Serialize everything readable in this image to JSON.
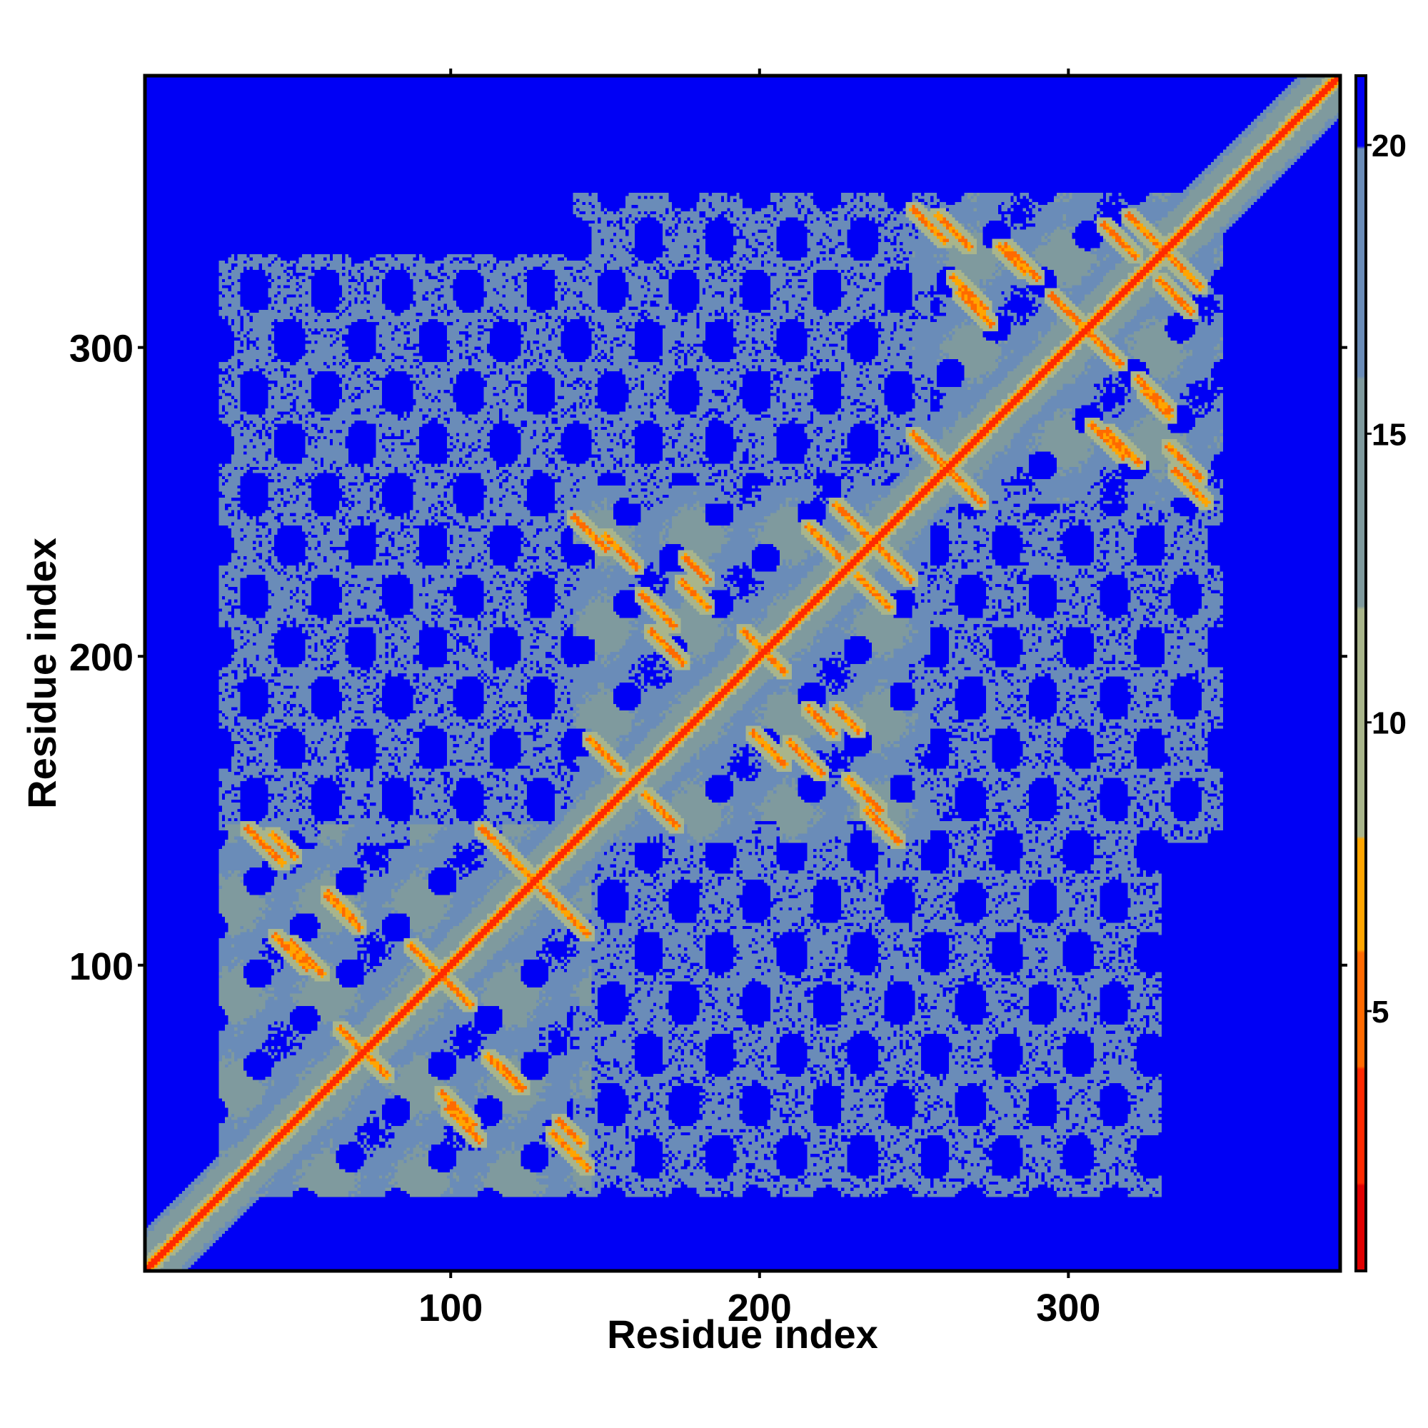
{
  "chart_data": {
    "type": "heatmap",
    "xlabel": "Residue index",
    "ylabel": "Residue index",
    "xlim": [
      1,
      388
    ],
    "ylim": [
      1,
      388
    ],
    "x_ticks": [
      100,
      200,
      300
    ],
    "y_ticks": [
      100,
      200,
      300
    ],
    "x_tick_labels": [
      "100",
      "200",
      "300"
    ],
    "y_tick_labels": [
      "100",
      "200",
      "300"
    ],
    "colorbar": {
      "range": [
        0.5,
        21.2
      ],
      "ticks": [
        5,
        10,
        15,
        20
      ],
      "tick_labels": [
        "5",
        "10",
        "15",
        "20"
      ],
      "bands": [
        {
          "from": 0.5,
          "to": 2,
          "color": "#e00000"
        },
        {
          "from": 2,
          "to": 4,
          "color": "#ff2a00"
        },
        {
          "from": 4,
          "to": 6,
          "color": "#ff6a00"
        },
        {
          "from": 6,
          "to": 8,
          "color": "#ffa500"
        },
        {
          "from": 8,
          "to": 12,
          "color": "#a9b58b"
        },
        {
          "from": 12,
          "to": 16,
          "color": "#7f9a9e"
        },
        {
          "from": 16,
          "to": 20,
          "color": "#6a8cb8"
        },
        {
          "from": 20,
          "to": 21.2,
          "color": "#0000f5"
        }
      ]
    },
    "value_cap": 21,
    "diagonal_value": 2,
    "grid": false,
    "domains": [
      {
        "range": [
          25,
          145
        ],
        "base": 16
      },
      {
        "range": [
          140,
          255
        ],
        "base": 16
      },
      {
        "range": [
          250,
          350
        ],
        "base": 16
      }
    ],
    "inter_domain_blocks": [
      {
        "rows": [
          25,
          145
        ],
        "cols": [
          140,
          255
        ],
        "base": 18.5
      },
      {
        "rows": [
          140,
          255
        ],
        "cols": [
          250,
          350
        ],
        "base": 18.5
      },
      {
        "rows": [
          25,
          145
        ],
        "cols": [
          250,
          330
        ],
        "base": 20.5
      }
    ],
    "contact_lines": [
      {
        "x1": 34,
        "y1": 144,
        "x2": 45,
        "y2": 133
      },
      {
        "x1": 60,
        "y1": 122,
        "x2": 70,
        "y2": 112
      },
      {
        "x1": 43,
        "y1": 109,
        "x2": 53,
        "y2": 99
      },
      {
        "x1": 87,
        "y1": 106,
        "x2": 97,
        "y2": 96
      },
      {
        "x1": 110,
        "y1": 144,
        "x2": 140,
        "y2": 114
      },
      {
        "x1": 64,
        "y1": 79,
        "x2": 72,
        "y2": 71
      },
      {
        "x1": 97,
        "y1": 58,
        "x2": 107,
        "y2": 48
      },
      {
        "x1": 115,
        "y1": 68,
        "x2": 123,
        "y2": 60
      },
      {
        "x1": 135,
        "y1": 49,
        "x2": 142,
        "y2": 42
      },
      {
        "x1": 150,
        "y1": 239,
        "x2": 160,
        "y2": 229
      },
      {
        "x1": 175,
        "y1": 224,
        "x2": 183,
        "y2": 216
      },
      {
        "x1": 165,
        "y1": 208,
        "x2": 175,
        "y2": 198
      },
      {
        "x1": 195,
        "y1": 208,
        "x2": 205,
        "y2": 198
      },
      {
        "x1": 225,
        "y1": 249,
        "x2": 235,
        "y2": 239
      },
      {
        "x1": 232,
        "y1": 226,
        "x2": 242,
        "y2": 216
      },
      {
        "x1": 145,
        "y1": 173,
        "x2": 155,
        "y2": 163
      },
      {
        "x1": 210,
        "y1": 172,
        "x2": 220,
        "y2": 162
      },
      {
        "x1": 225,
        "y1": 183,
        "x2": 232,
        "y2": 176
      },
      {
        "x1": 235,
        "y1": 150,
        "x2": 245,
        "y2": 140
      },
      {
        "x1": 258,
        "y1": 343,
        "x2": 268,
        "y2": 333
      },
      {
        "x1": 280,
        "y1": 333,
        "x2": 290,
        "y2": 323
      },
      {
        "x1": 265,
        "y1": 318,
        "x2": 275,
        "y2": 308
      },
      {
        "x1": 295,
        "y1": 317,
        "x2": 305,
        "y2": 307
      },
      {
        "x1": 320,
        "y1": 343,
        "x2": 330,
        "y2": 333
      },
      {
        "x1": 330,
        "y1": 322,
        "x2": 340,
        "y2": 312
      },
      {
        "x1": 250,
        "y1": 272,
        "x2": 260,
        "y2": 262
      },
      {
        "x1": 313,
        "y1": 273,
        "x2": 323,
        "y2": 263
      },
      {
        "x1": 325,
        "y1": 286,
        "x2": 333,
        "y2": 278
      },
      {
        "x1": 335,
        "y1": 260,
        "x2": 345,
        "y2": 250
      }
    ]
  }
}
